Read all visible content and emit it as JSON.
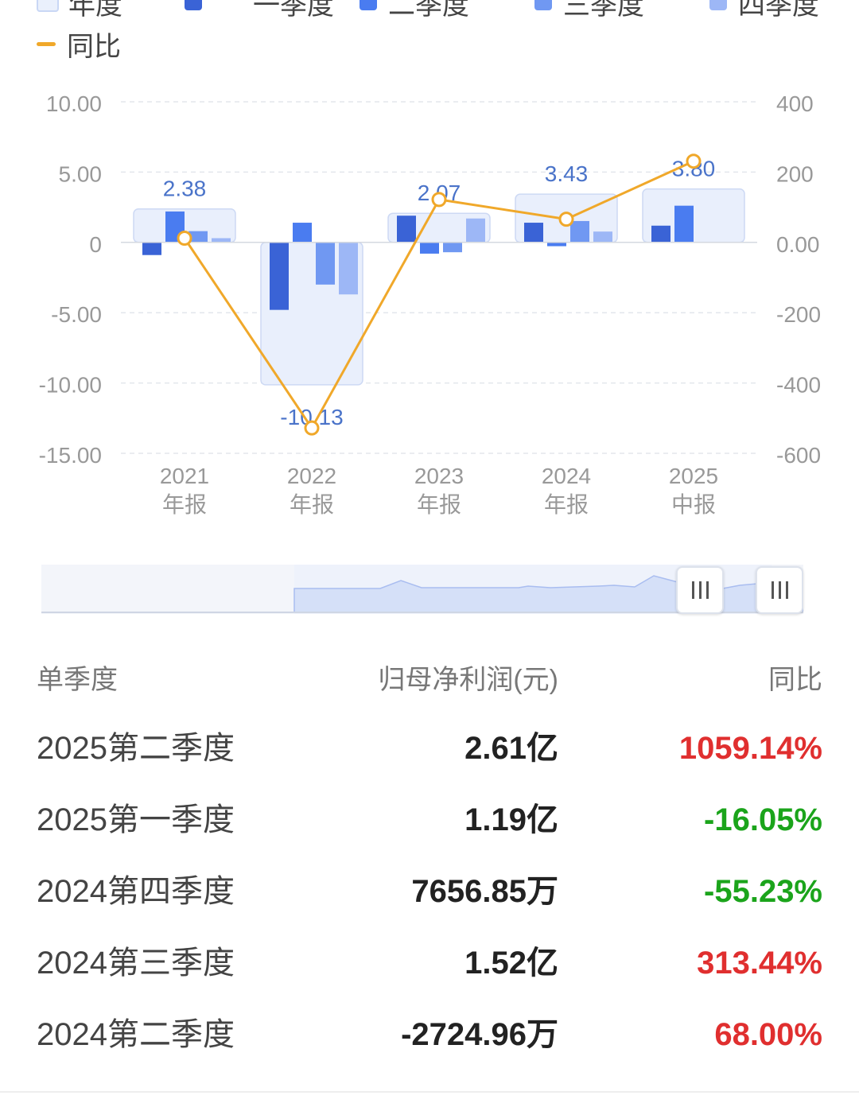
{
  "legend": {
    "items": [
      {
        "label": "年度",
        "color": "#eaf0fc",
        "border": "#c9d7f5"
      },
      {
        "label": "一季度",
        "color": "#3a63d6"
      },
      {
        "label": "二季度",
        "color": "#4a7cf0"
      },
      {
        "label": "三季度",
        "color": "#7098f2"
      },
      {
        "label": "四季度",
        "color": "#9db7f6"
      }
    ],
    "line": {
      "label": "同比",
      "color": "#f0a82a"
    }
  },
  "chart_data": {
    "type": "bar",
    "categories": [
      [
        "2021",
        "年报"
      ],
      [
        "2022",
        "年报"
      ],
      [
        "2023",
        "年报"
      ],
      [
        "2024",
        "年报"
      ],
      [
        "2025",
        "中报"
      ]
    ],
    "left_axis": {
      "ticks": [
        "10.00",
        "5.00",
        "0",
        "-5.00",
        "-10.00",
        "-15.00"
      ],
      "ylim": [
        -15,
        10
      ]
    },
    "right_axis": {
      "ticks": [
        "400",
        "200",
        "0.00",
        "-200",
        "-400",
        "-600"
      ],
      "ylim": [
        -600,
        400
      ]
    },
    "series": [
      {
        "name": "年度",
        "values": [
          2.38,
          -10.13,
          2.07,
          3.43,
          3.8
        ]
      },
      {
        "name": "一季度",
        "values": [
          -0.9,
          -4.8,
          1.9,
          1.4,
          1.19
        ]
      },
      {
        "name": "二季度",
        "values": [
          2.2,
          1.4,
          -0.8,
          -0.27,
          2.61
        ]
      },
      {
        "name": "三季度",
        "values": [
          0.8,
          -3.0,
          -0.7,
          1.52,
          null
        ]
      },
      {
        "name": "四季度",
        "values": [
          0.3,
          -3.7,
          1.7,
          0.77,
          null
        ]
      }
    ],
    "line_series": {
      "name": "同比",
      "values": [
        12,
        -528,
        122,
        66,
        231
      ]
    },
    "annual_labels": [
      "2.38",
      "-10.13",
      "2.07",
      "3.43",
      "3.80"
    ],
    "grid": true
  },
  "table": {
    "headers": [
      "单季度",
      "归母净利润(元)",
      "同比"
    ],
    "rows": [
      {
        "period": "2025第二季度",
        "profit": "2.61亿",
        "yoy": "1059.14%",
        "dir": "up"
      },
      {
        "period": "2025第一季度",
        "profit": "1.19亿",
        "yoy": "-16.05%",
        "dir": "down"
      },
      {
        "period": "2024第四季度",
        "profit": "7656.85万",
        "yoy": "-55.23%",
        "dir": "down"
      },
      {
        "period": "2024第三季度",
        "profit": "1.52亿",
        "yoy": "313.44%",
        "dir": "up"
      },
      {
        "period": "2024第二季度",
        "profit": "-2724.96万",
        "yoy": "68.00%",
        "dir": "up"
      }
    ]
  },
  "slider_handle_icon": "grip-lines-icon"
}
